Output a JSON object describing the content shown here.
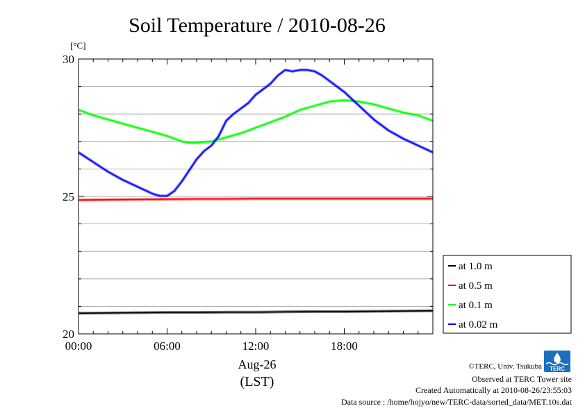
{
  "chart_data": {
    "type": "line",
    "title": "Soil Temperature / 2010-08-26",
    "ylabel": "[°C]",
    "xlabel_date": "Aug-26",
    "xlabel_tz": "(LST)",
    "ylim": [
      20,
      30
    ],
    "xlim_hours": [
      0,
      24
    ],
    "y_ticks": [
      20,
      25,
      30
    ],
    "y_tick_labels": [
      "20",
      "25",
      "30"
    ],
    "x_ticks_hours": [
      0,
      6,
      12,
      18
    ],
    "x_tick_labels": [
      "00:00",
      "06:00",
      "12:00",
      "18:00"
    ],
    "grid": "horizontal",
    "legend_position": "right-bottom",
    "series": [
      {
        "name": "at 1.0 m",
        "color": "#000000",
        "x": [
          0,
          2,
          4,
          6,
          8,
          10,
          12,
          14,
          16,
          18,
          20,
          22,
          24
        ],
        "y": [
          20.75,
          20.76,
          20.77,
          20.78,
          20.78,
          20.79,
          20.79,
          20.8,
          20.81,
          20.81,
          20.82,
          20.83,
          20.84
        ]
      },
      {
        "name": "at 0.5 m",
        "color": "#ff0000",
        "x": [
          0,
          2,
          4,
          6,
          8,
          10,
          12,
          14,
          16,
          18,
          20,
          22,
          24
        ],
        "y": [
          24.87,
          24.88,
          24.89,
          24.9,
          24.91,
          24.91,
          24.92,
          24.92,
          24.92,
          24.92,
          24.92,
          24.92,
          24.92
        ]
      },
      {
        "name": "at 0.1 m",
        "color": "#00ff00",
        "x": [
          0,
          1,
          2,
          3,
          4,
          5,
          6,
          7,
          7.5,
          8,
          9,
          10,
          11,
          12,
          13,
          14,
          15,
          16,
          17,
          18,
          19,
          20,
          21,
          22,
          23,
          24
        ],
        "y": [
          28.15,
          27.95,
          27.8,
          27.65,
          27.5,
          27.35,
          27.2,
          27.0,
          26.95,
          26.95,
          27.0,
          27.15,
          27.3,
          27.5,
          27.7,
          27.9,
          28.15,
          28.3,
          28.45,
          28.5,
          28.45,
          28.35,
          28.2,
          28.05,
          27.95,
          27.75
        ]
      },
      {
        "name": "at 0.02 m",
        "color": "#0000ff",
        "x": [
          0,
          1,
          2,
          3,
          4,
          5,
          5.5,
          6,
          6.5,
          7,
          7.5,
          8,
          8.5,
          9,
          9.5,
          10,
          10.5,
          11,
          11.5,
          12,
          12.5,
          13,
          13.5,
          14,
          14.5,
          15,
          15.5,
          16,
          16.5,
          17,
          18,
          19,
          20,
          21,
          22,
          23,
          24
        ],
        "y": [
          26.6,
          26.25,
          25.9,
          25.6,
          25.35,
          25.1,
          25.02,
          25.02,
          25.2,
          25.55,
          25.95,
          26.35,
          26.65,
          26.85,
          27.2,
          27.75,
          28.0,
          28.2,
          28.4,
          28.7,
          28.9,
          29.1,
          29.4,
          29.6,
          29.55,
          29.6,
          29.6,
          29.55,
          29.4,
          29.2,
          28.8,
          28.3,
          27.8,
          27.4,
          27.1,
          26.85,
          26.6
        ]
      }
    ]
  },
  "credits": {
    "copyright": "©TERC, Univ. Tsukuba",
    "observed": "Observed at TERC Tower site",
    "created": "Created Automatically at 2010-08-26/23:55:03",
    "source": "Data source : /home/hojyo/new/TERC-data/sorted_data/MET.10s.dat"
  },
  "logo": {
    "text": "TERC",
    "color": "#1a6fc0"
  }
}
